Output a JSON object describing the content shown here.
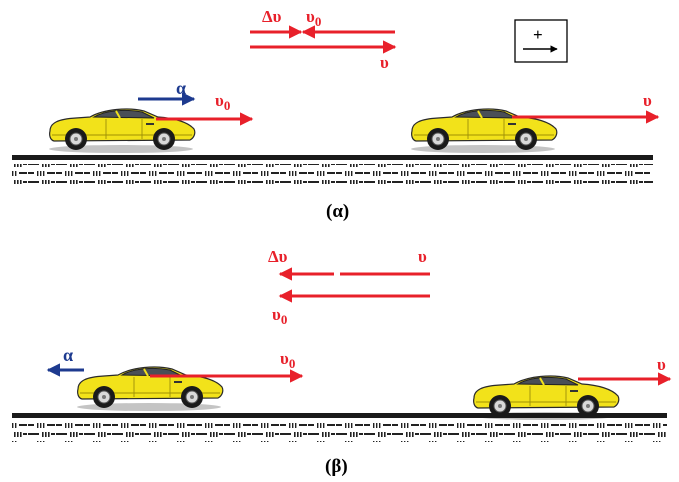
{
  "colors": {
    "velocity": "#e8202a",
    "acceleration": "#1d3a8f",
    "car_body": "#f2e21a",
    "car_shade": "#c9b90e",
    "ground": "#1a1a1a"
  },
  "icons": [
    "positive-direction-icon",
    "car-icon"
  ],
  "panel_a": {
    "caption": "(α)",
    "vector_diagram": {
      "delta_v": "Δυ",
      "v0": "υ0",
      "v": "υ"
    },
    "car_left": {
      "acceleration_label": "α",
      "velocity_label": "υ0"
    },
    "car_right": {
      "velocity_label": "υ"
    },
    "positive_direction": "+"
  },
  "panel_b": {
    "caption": "(β)",
    "vector_diagram": {
      "delta_v": "Δυ",
      "v": "υ",
      "v0": "υ0"
    },
    "car_left": {
      "acceleration_label": "α",
      "velocity_label": "υ0"
    },
    "car_right": {
      "velocity_label": "υ"
    }
  }
}
